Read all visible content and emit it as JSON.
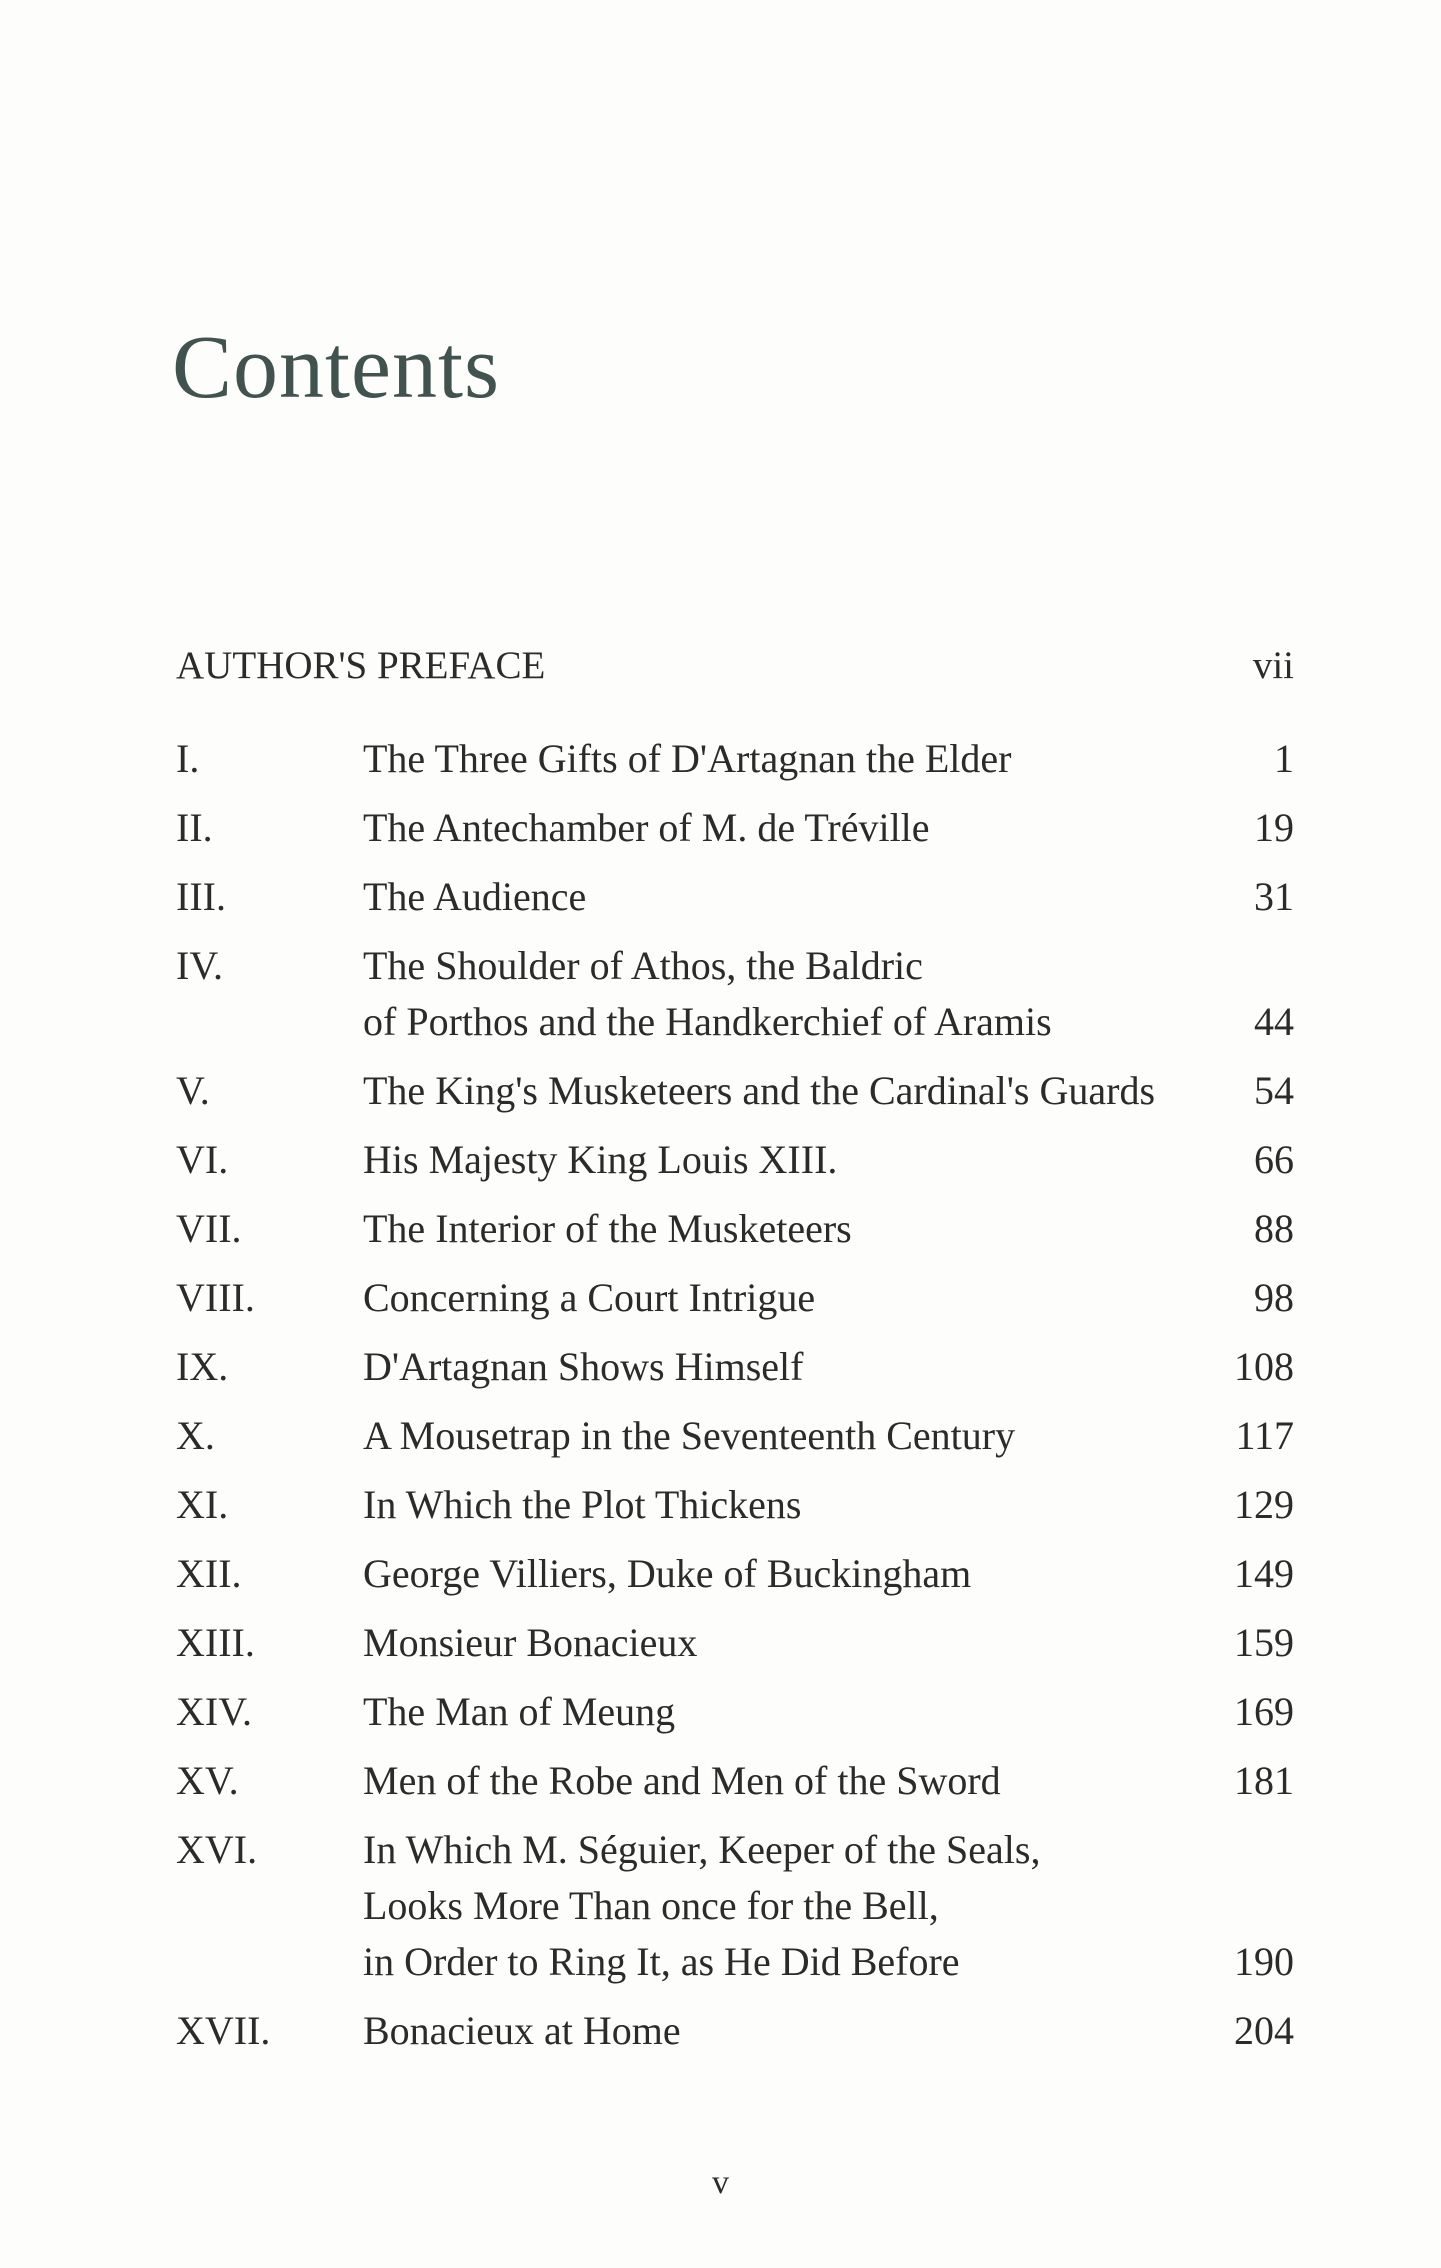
{
  "title": "Contents",
  "preface": {
    "label": "AUTHOR'S PREFACE",
    "page": "vii"
  },
  "chapters": [
    {
      "number": "I.",
      "title": "The Three Gifts of D'Artagnan the Elder",
      "page": "1"
    },
    {
      "number": "II.",
      "title": "The Antechamber of M. de Tréville",
      "page": "19"
    },
    {
      "number": "III.",
      "title": "The Audience",
      "page": "31"
    },
    {
      "number": "IV.",
      "title": "The Shoulder of Athos, the Baldric\nof Porthos and the Handkerchief of Aramis",
      "page": "44"
    },
    {
      "number": "V.",
      "title": "The King's Musketeers and the Cardinal's Guards",
      "page": "54"
    },
    {
      "number": "VI.",
      "title": "His Majesty King Louis XIII.",
      "page": "66"
    },
    {
      "number": "VII.",
      "title": "The Interior of the Musketeers",
      "page": "88"
    },
    {
      "number": "VIII.",
      "title": "Concerning a Court Intrigue",
      "page": "98"
    },
    {
      "number": "IX.",
      "title": "D'Artagnan Shows Himself",
      "page": "108"
    },
    {
      "number": "X.",
      "title": "A Mousetrap in the Seventeenth Century",
      "page": "117"
    },
    {
      "number": "XI.",
      "title": "In Which the Plot Thickens",
      "page": "129"
    },
    {
      "number": "XII.",
      "title": "George Villiers, Duke of Buckingham",
      "page": "149"
    },
    {
      "number": "XIII.",
      "title": "Monsieur Bonacieux",
      "page": "159"
    },
    {
      "number": "XIV.",
      "title": "The Man of Meung",
      "page": "169"
    },
    {
      "number": "XV.",
      "title": "Men of the Robe and Men of the Sword",
      "page": "181"
    },
    {
      "number": "XVI.",
      "title": "In Which M. Séguier, Keeper of the Seals,\nLooks More Than once for the Bell,\nin Order to Ring It, as He Did Before",
      "page": "190"
    },
    {
      "number": "XVII.",
      "title": "Bonacieux at Home",
      "page": "204"
    }
  ],
  "folio": "v",
  "colors": {
    "title": "#41534f",
    "text": "#2b2b2b",
    "paper": "#fdfdfb"
  }
}
